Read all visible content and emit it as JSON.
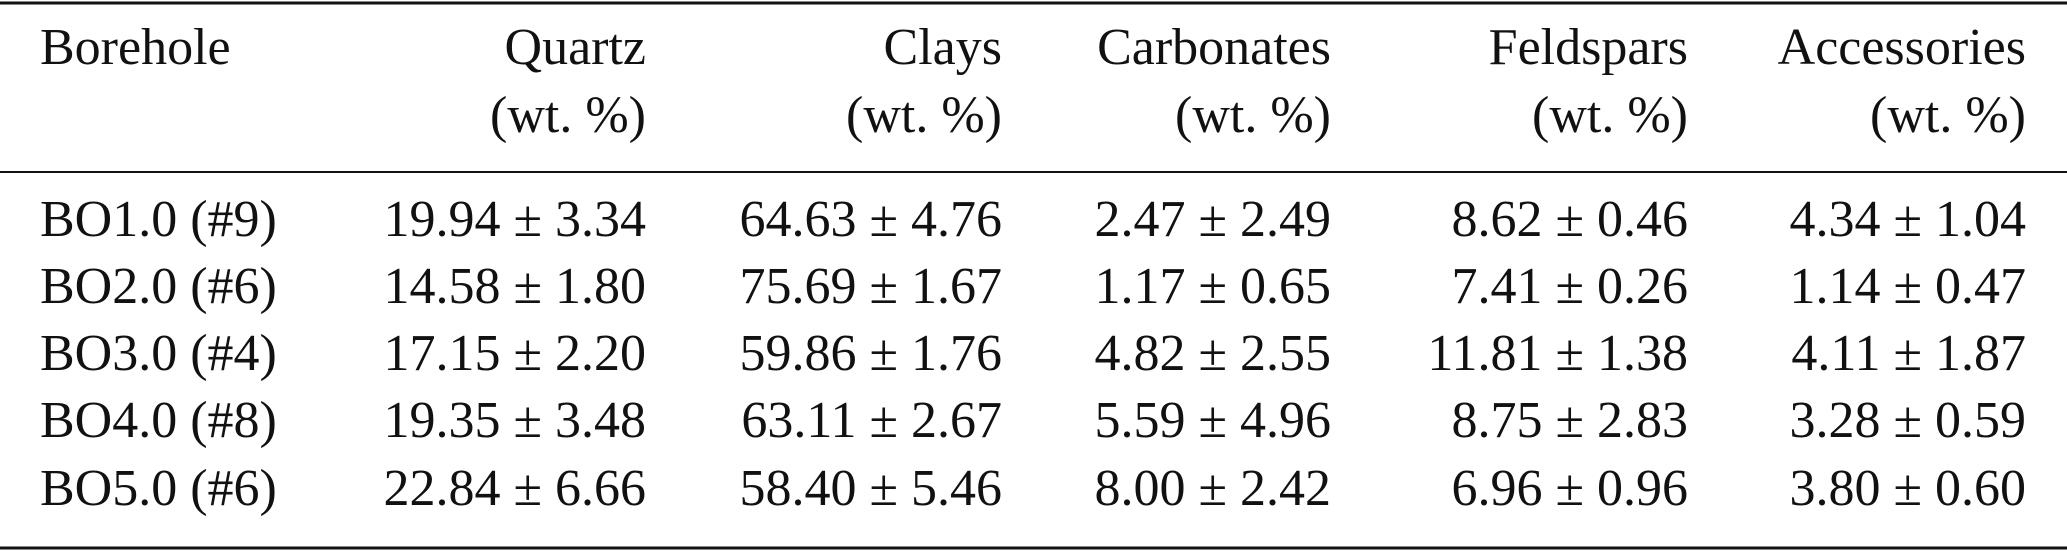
{
  "table": {
    "columns": [
      {
        "name": "Borehole"
      },
      {
        "name": "Quartz",
        "unit": "(wt. %)"
      },
      {
        "name": "Clays",
        "unit": "(wt. %)"
      },
      {
        "name": "Carbonates",
        "unit": "(wt. %)"
      },
      {
        "name": "Feldspars",
        "unit": "(wt. %)"
      },
      {
        "name": "Accessories",
        "unit": "(wt. %)"
      }
    ],
    "rows": [
      [
        "BO1.0 (#9)",
        "19.94 ± 3.34",
        "64.63 ± 4.76",
        "2.47 ± 2.49",
        "8.62 ± 0.46",
        "4.34 ± 1.04"
      ],
      [
        "BO2.0 (#6)",
        "14.58 ± 1.80",
        "75.69 ± 1.67",
        "1.17 ± 0.65",
        "7.41 ± 0.26",
        "1.14 ± 0.47"
      ],
      [
        "BO3.0 (#4)",
        "17.15 ± 2.20",
        "59.86 ± 1.76",
        "4.82 ± 2.55",
        "11.81 ± 1.38",
        "4.11 ± 1.87"
      ],
      [
        "BO4.0 (#8)",
        "19.35 ± 3.48",
        "63.11 ± 2.67",
        "5.59 ± 4.96",
        "8.75 ± 2.83",
        "3.28 ± 0.59"
      ],
      [
        "BO5.0 (#6)",
        "22.84 ± 6.66",
        "58.40 ± 5.46",
        "8.00 ± 2.42",
        "6.96 ± 0.96",
        "3.80 ± 0.60"
      ]
    ]
  }
}
